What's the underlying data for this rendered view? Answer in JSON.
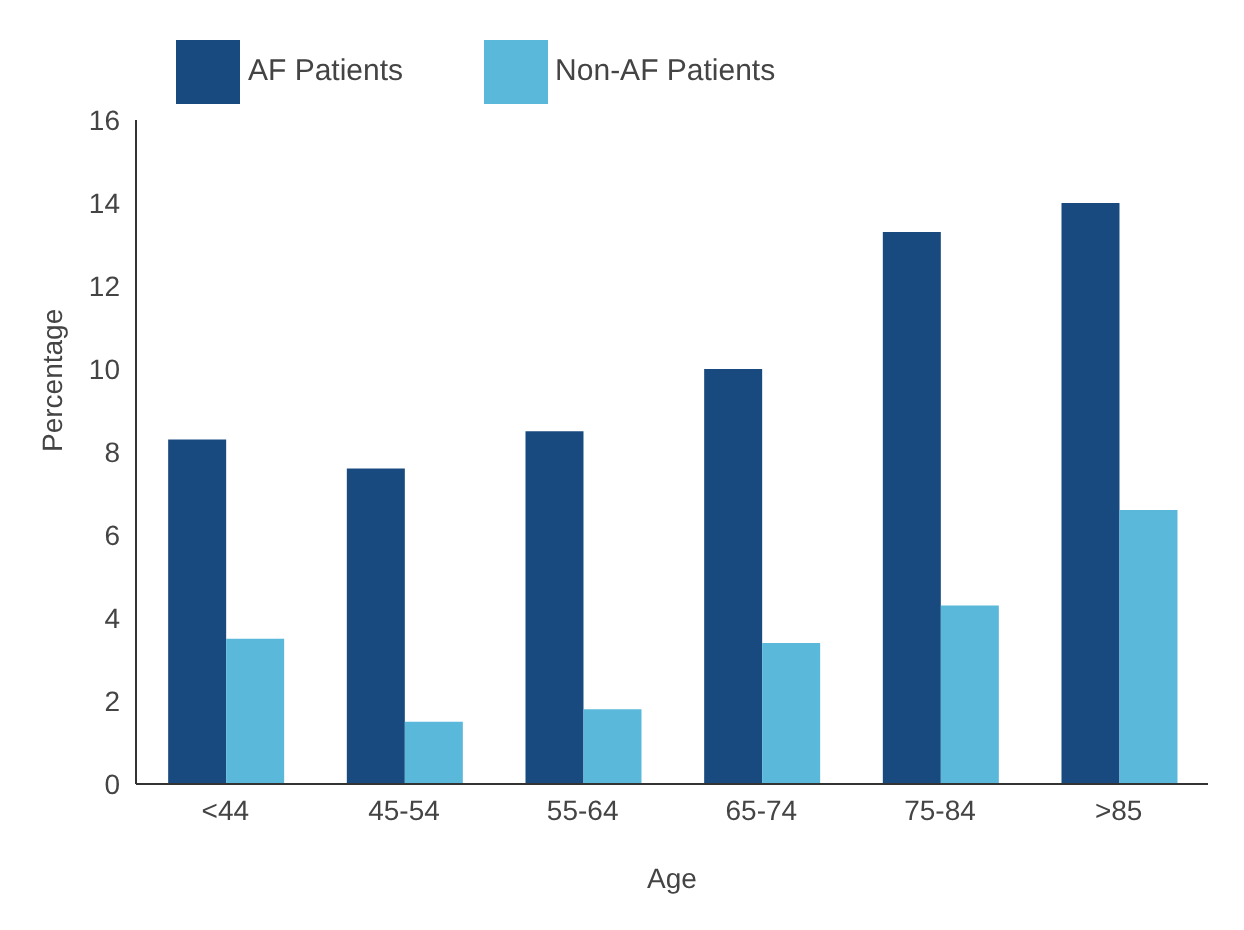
{
  "chart_data": {
    "type": "bar",
    "xlabel": "Age",
    "ylabel": "Percentage",
    "categories": [
      "<44",
      "45-54",
      "55-64",
      "65-74",
      "75-84",
      ">85"
    ],
    "series": [
      {
        "name": "AF Patients",
        "color": "#184a80",
        "values": [
          8.3,
          7.6,
          8.5,
          10.0,
          13.3,
          14.0
        ]
      },
      {
        "name": "Non-AF Patients",
        "color": "#5ab8da",
        "values": [
          3.5,
          1.5,
          1.8,
          3.4,
          4.3,
          6.6
        ]
      }
    ],
    "ylim": [
      0,
      16
    ],
    "yticks": [
      0,
      2,
      4,
      6,
      8,
      10,
      12,
      14,
      16
    ],
    "grid": false,
    "legend": "top left"
  }
}
